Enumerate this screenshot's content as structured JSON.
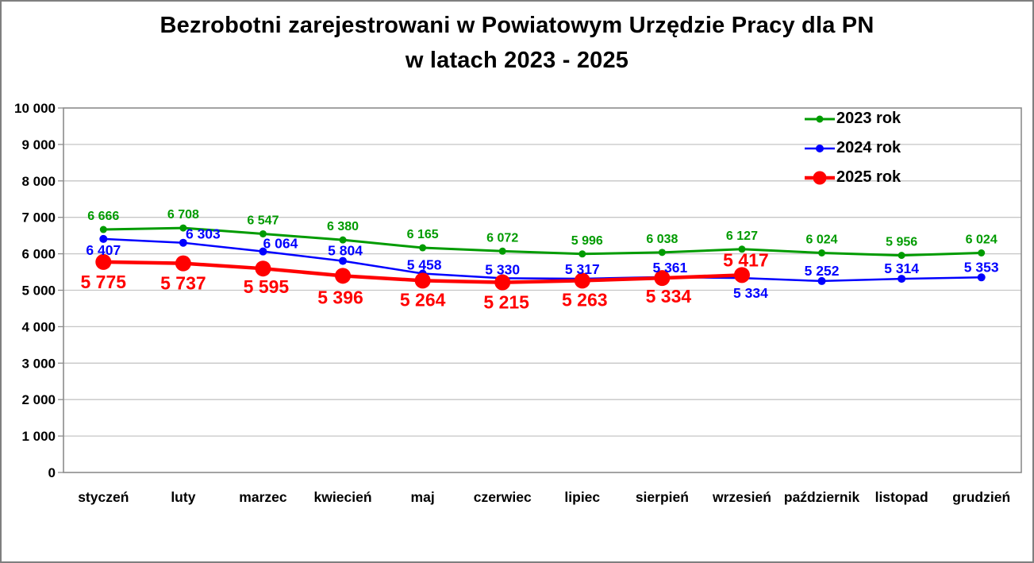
{
  "title": {
    "line1": "Bezrobotni zarejestrowani w Powiatowym Urzędzie Pracy dla PN",
    "line2": "w latach 2023 - 2025"
  },
  "chart_data": {
    "type": "line",
    "categories": [
      "styczeń",
      "luty",
      "marzec",
      "kwiecień",
      "maj",
      "czerwiec",
      "lipiec",
      "sierpień",
      "wrzesień",
      "październik",
      "listopad",
      "grudzień"
    ],
    "series": [
      {
        "name": "2023 rok",
        "color": "#009b00",
        "values": [
          6666,
          6708,
          6547,
          6380,
          6165,
          6072,
          5996,
          6038,
          6127,
          6024,
          5956,
          6024
        ],
        "label_offsets": [
          [
            0,
            -12
          ],
          [
            0,
            -12
          ],
          [
            0,
            -12
          ],
          [
            0,
            -12
          ],
          [
            0,
            -12
          ],
          [
            0,
            -12
          ],
          [
            6,
            -12
          ],
          [
            0,
            -12
          ],
          [
            0,
            -12
          ],
          [
            0,
            -12
          ],
          [
            0,
            -12
          ],
          [
            0,
            -12
          ]
        ]
      },
      {
        "name": "2024 rok",
        "color": "#0000ff",
        "values": [
          6407,
          6303,
          6064,
          5804,
          5458,
          5330,
          5317,
          5361,
          5334,
          5252,
          5314,
          5353
        ],
        "label_offsets": [
          [
            0,
            20
          ],
          [
            25,
            -5
          ],
          [
            22,
            -4
          ],
          [
            3,
            -7
          ],
          [
            2,
            -5
          ],
          [
            0,
            -5
          ],
          [
            0,
            -6
          ],
          [
            10,
            -6
          ],
          [
            11,
            25
          ],
          [
            0,
            -7
          ],
          [
            0,
            -7
          ],
          [
            0,
            -7
          ]
        ]
      },
      {
        "name": "2025 rok",
        "color": "#ff0000",
        "values": [
          5775,
          5737,
          5595,
          5396,
          5264,
          5215,
          5263,
          5334,
          5417
        ],
        "label_offsets": [
          [
            0,
            33
          ],
          [
            0,
            33
          ],
          [
            4,
            31
          ],
          [
            -3,
            35
          ],
          [
            0,
            32
          ],
          [
            5,
            33
          ],
          [
            3,
            32
          ],
          [
            8,
            31
          ],
          [
            5,
            -11
          ]
        ]
      }
    ],
    "ylim": [
      0,
      10000
    ],
    "y_tick_step": 1000,
    "xlabel": "",
    "ylabel": "",
    "grid": "horizontal",
    "legend_position": "top-right"
  }
}
